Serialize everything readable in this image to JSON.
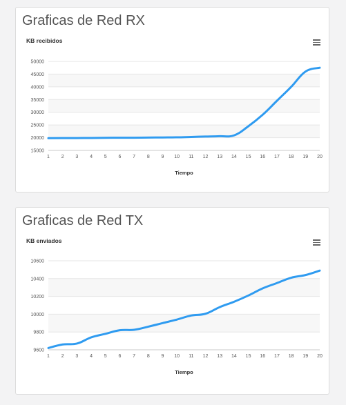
{
  "panels": [
    {
      "title": "Graficas de Red RX",
      "menu_icon": "hamburger-menu-icon"
    },
    {
      "title": "Graficas de Red TX",
      "menu_icon": "hamburger-menu-icon"
    }
  ],
  "colors": {
    "series": "#2f9bf0",
    "grid_band": "#f7f7f7",
    "grid_line": "#e6e6e6",
    "axis_text": "#555555",
    "title_text": "#555555"
  },
  "chart_data": [
    {
      "type": "line",
      "title": "KB recibidos",
      "xlabel": "Tiempo",
      "ylabel": "",
      "x": [
        1,
        2,
        3,
        4,
        5,
        6,
        7,
        8,
        9,
        10,
        11,
        12,
        13,
        14,
        15,
        16,
        17,
        18,
        19,
        20
      ],
      "series": [
        {
          "name": "",
          "values": [
            19800,
            19850,
            19850,
            19900,
            19950,
            20000,
            20000,
            20050,
            20100,
            20150,
            20300,
            20450,
            20600,
            20900,
            24500,
            29000,
            34500,
            40000,
            46000,
            47500
          ]
        }
      ],
      "ylim": [
        15000,
        50000
      ],
      "yticks": [
        15000,
        20000,
        25000,
        30000,
        35000,
        40000,
        45000,
        50000
      ],
      "xticks": [
        1,
        2,
        3,
        4,
        5,
        6,
        7,
        8,
        9,
        10,
        11,
        12,
        13,
        14,
        15,
        16,
        17,
        18,
        19,
        20
      ],
      "grid": true,
      "legend": "none"
    },
    {
      "type": "line",
      "title": "KB enviados",
      "xlabel": "Tiempo",
      "ylabel": "",
      "x": [
        1,
        2,
        3,
        4,
        5,
        6,
        7,
        8,
        9,
        10,
        11,
        12,
        13,
        14,
        15,
        16,
        17,
        18,
        19,
        20
      ],
      "series": [
        {
          "name": "",
          "values": [
            9620,
            9660,
            9670,
            9740,
            9780,
            9820,
            9825,
            9860,
            9900,
            9940,
            9985,
            10005,
            10080,
            10140,
            10210,
            10290,
            10350,
            10410,
            10440,
            10490
          ]
        }
      ],
      "ylim": [
        9600,
        10600
      ],
      "yticks": [
        9600,
        9800,
        10000,
        10200,
        10400,
        10600
      ],
      "xticks": [
        1,
        2,
        3,
        4,
        5,
        6,
        7,
        8,
        9,
        10,
        11,
        12,
        13,
        14,
        15,
        16,
        17,
        18,
        19,
        20
      ],
      "grid": true,
      "legend": "none"
    }
  ]
}
